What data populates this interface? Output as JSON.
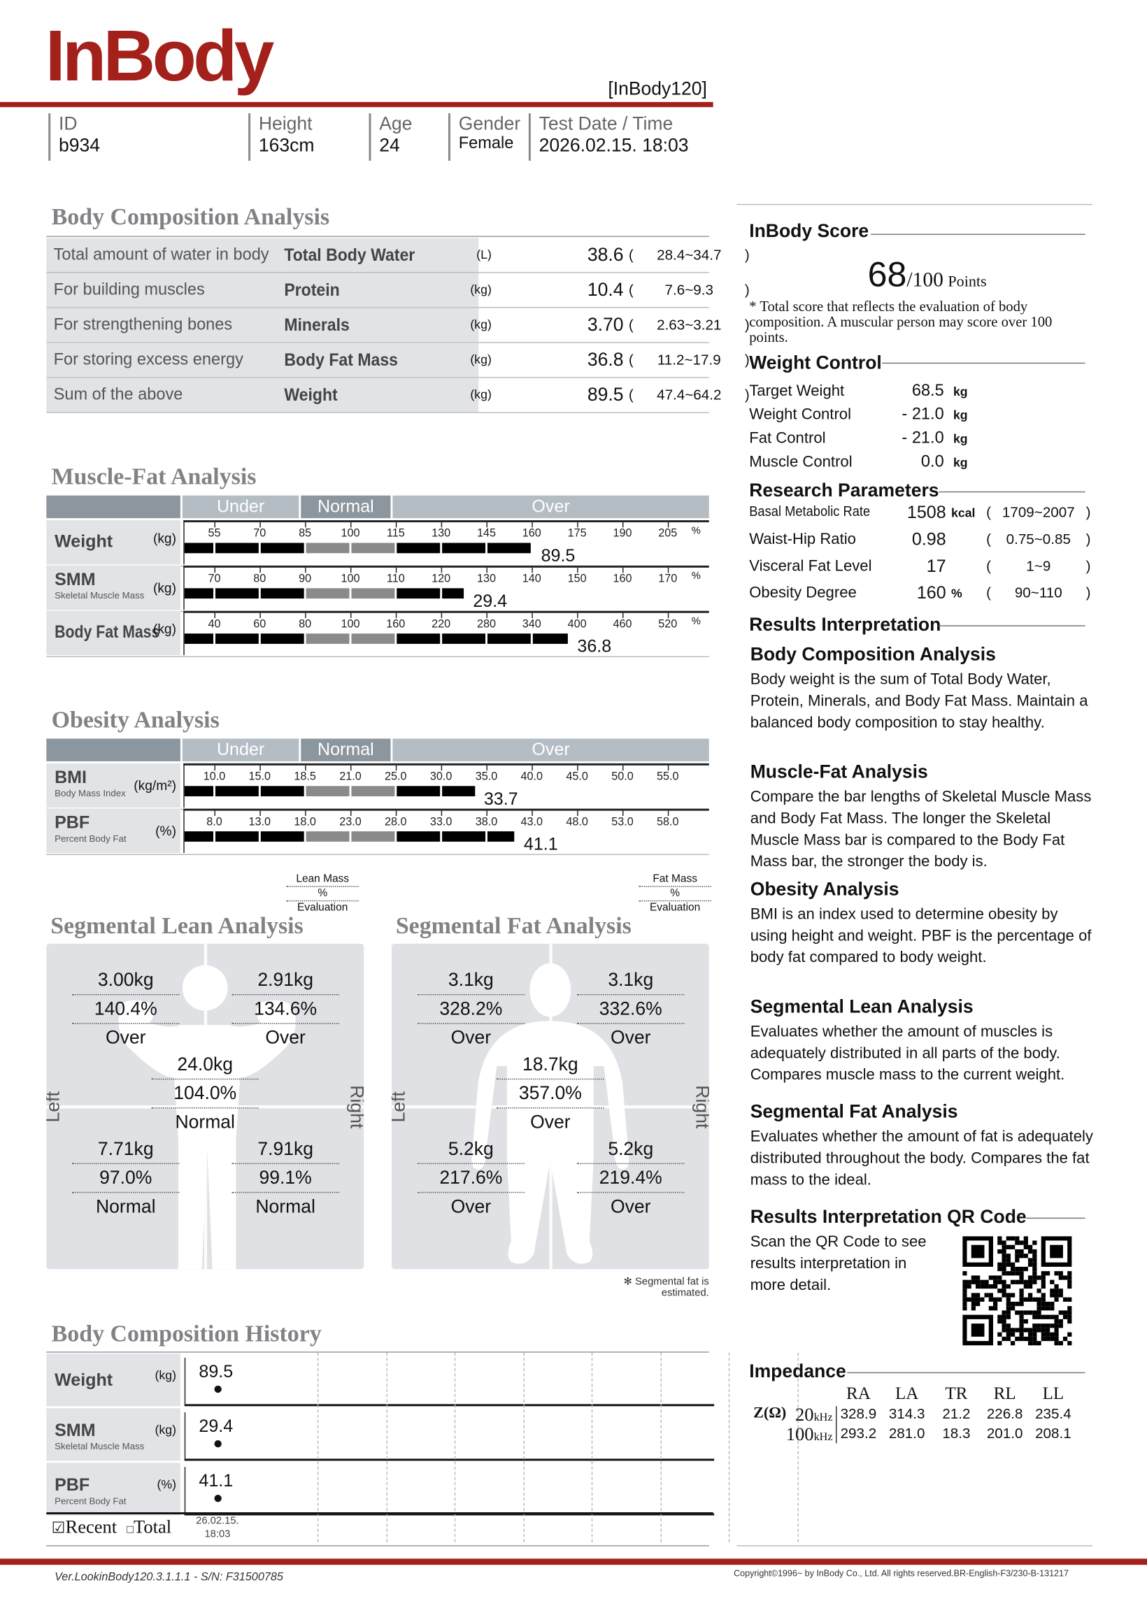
{
  "header": {
    "logo": "InBody",
    "model": "[InBody120]"
  },
  "info": {
    "id_label": "ID",
    "id": "b934",
    "height_label": "Height",
    "height": "163cm",
    "age_label": "Age",
    "age": "24",
    "gender_label": "Gender",
    "gender": "Female",
    "date_label": "Test Date / Time",
    "date": "2026.02.15. 18:03"
  },
  "bca": {
    "title": "Body Composition Analysis",
    "rows": [
      {
        "desc": "Total amount of water in body",
        "name": "Total Body Water",
        "unit": "(L)",
        "value": "38.6",
        "range": "28.4~34.7"
      },
      {
        "desc": "For building muscles",
        "name": "Protein",
        "unit": "(kg)",
        "value": "10.4",
        "range": "7.6~9.3"
      },
      {
        "desc": "For strengthening bones",
        "name": "Minerals",
        "unit": "(kg)",
        "value": "3.70",
        "range": "2.63~3.21"
      },
      {
        "desc": "For storing excess energy",
        "name": "Body Fat Mass",
        "unit": "(kg)",
        "value": "36.8",
        "range": "11.2~17.9"
      },
      {
        "desc": "Sum of the above",
        "name": "Weight",
        "unit": "(kg)",
        "value": "89.5",
        "range": "47.4~64.2"
      }
    ]
  },
  "bands": {
    "under": "Under",
    "normal": "Normal",
    "over": "Over"
  },
  "chart_data": [
    {
      "type": "bar",
      "title": "Muscle-Fat Analysis",
      "scale_unit": "%",
      "series": [
        {
          "name": "Weight",
          "sub": "",
          "unit": "(kg)",
          "ticks": [
            "55",
            "70",
            "85",
            "100",
            "115",
            "130",
            "145",
            "160",
            "175",
            "190",
            "205"
          ],
          "bar_level": 160,
          "value": "89.5"
        },
        {
          "name": "SMM",
          "sub": "Skeletal Muscle Mass",
          "unit": "(kg)",
          "ticks": [
            "70",
            "80",
            "90",
            "100",
            "110",
            "120",
            "130",
            "140",
            "150",
            "160",
            "170"
          ],
          "bar_level": 125,
          "value": "29.4"
        },
        {
          "name": "Body Fat Mass",
          "sub": "",
          "unit": "(kg)",
          "ticks": [
            "40",
            "60",
            "80",
            "100",
            "160",
            "220",
            "280",
            "340",
            "400",
            "460",
            "520"
          ],
          "bar_level": 388,
          "value": "36.8"
        }
      ]
    },
    {
      "type": "bar",
      "title": "Obesity Analysis",
      "series": [
        {
          "name": "BMI",
          "sub": "Body Mass Index",
          "unit": "(kg/m²)",
          "ticks": [
            "10.0",
            "15.0",
            "18.5",
            "21.0",
            "25.0",
            "30.0",
            "35.0",
            "40.0",
            "45.0",
            "50.0",
            "55.0"
          ],
          "bar_level": 33.7,
          "value": "33.7"
        },
        {
          "name": "PBF",
          "sub": "Percent Body Fat",
          "unit": "(%)",
          "ticks": [
            "8.0",
            "13.0",
            "18.0",
            "23.0",
            "28.0",
            "33.0",
            "38.0",
            "43.0",
            "48.0",
            "53.0",
            "58.0"
          ],
          "bar_level": 41.1,
          "value": "41.1"
        }
      ]
    }
  ],
  "segmental_lean": {
    "title": "Segmental Lean Analysis",
    "legend": [
      "Lean Mass",
      "%",
      "Evaluation"
    ],
    "left": "Left",
    "right": "Right",
    "left_arm": [
      "3.00kg",
      "140.4%",
      "Over"
    ],
    "right_arm": [
      "2.91kg",
      "134.6%",
      "Over"
    ],
    "trunk": [
      "24.0kg",
      "104.0%",
      "Normal"
    ],
    "left_leg": [
      "7.71kg",
      "97.0%",
      "Normal"
    ],
    "right_leg": [
      "7.91kg",
      "99.1%",
      "Normal"
    ]
  },
  "segmental_fat": {
    "title": "Segmental Fat Analysis",
    "legend": [
      "Fat Mass",
      "%",
      "Evaluation"
    ],
    "left": "Left",
    "right": "Right",
    "left_arm": [
      "3.1kg",
      "328.2%",
      "Over"
    ],
    "right_arm": [
      "3.1kg",
      "332.6%",
      "Over"
    ],
    "trunk": [
      "18.7kg",
      "357.0%",
      "Over"
    ],
    "left_leg": [
      "5.2kg",
      "217.6%",
      "Over"
    ],
    "right_leg": [
      "5.2kg",
      "219.4%",
      "Over"
    ],
    "note": "✻ Segmental fat is estimated."
  },
  "history": {
    "title": "Body Composition History",
    "rows": [
      {
        "name": "Weight",
        "sub": "",
        "unit": "(kg)",
        "value": "89.5"
      },
      {
        "name": "SMM",
        "sub": "Skeletal Muscle Mass",
        "unit": "(kg)",
        "value": "29.4"
      },
      {
        "name": "PBF",
        "sub": "Percent Body Fat",
        "unit": "(%)",
        "value": "41.1"
      }
    ],
    "recent_label": "Recent",
    "total_label": "Total",
    "recent_checked": true,
    "date": "26.02.15.",
    "time": "18:03"
  },
  "score": {
    "title": "InBody Score",
    "value": "68",
    "max": "/100",
    "unit": "Points",
    "note": "* Total score that reflects the evaluation of body composition. A muscular person may score over 100 points."
  },
  "weight_control": {
    "title": "Weight Control",
    "rows": [
      {
        "label": "Target Weight",
        "value": "68.5",
        "unit": "kg"
      },
      {
        "label": "Weight Control",
        "value": "- 21.0",
        "unit": "kg"
      },
      {
        "label": "Fat Control",
        "value": "- 21.0",
        "unit": "kg"
      },
      {
        "label": "Muscle Control",
        "value": "0.0",
        "unit": "kg"
      }
    ]
  },
  "research": {
    "title": "Research Parameters",
    "rows": [
      {
        "label": "Basal Metabolic Rate",
        "value": "1508",
        "unit": "kcal",
        "range": "1709~2007"
      },
      {
        "label": "Waist-Hip Ratio",
        "value": "0.98",
        "unit": "",
        "range": "0.75~0.85"
      },
      {
        "label": "Visceral Fat Level",
        "value": "17",
        "unit": "",
        "range": "1~9"
      },
      {
        "label": "Obesity Degree",
        "value": "160",
        "unit": "%",
        "range": "90~110"
      }
    ]
  },
  "interpretation": {
    "title": "Results Interpretation",
    "items": [
      {
        "heading": "Body Composition Analysis",
        "text": "Body weight is the sum of Total Body Water, Protein, Minerals, and Body Fat Mass. Maintain a balanced body composition to stay healthy."
      },
      {
        "heading": "Muscle-Fat Analysis",
        "text": "Compare the bar lengths of Skeletal Muscle Mass and Body Fat Mass. The longer the Skeletal Muscle Mass bar is compared to the Body Fat Mass bar, the stronger the body is."
      },
      {
        "heading": "Obesity Analysis",
        "text": "BMI is an index used to determine obesity by using height and weight. PBF is the percentage of body fat compared to body weight."
      },
      {
        "heading": "Segmental Lean Analysis",
        "text": "Evaluates whether the amount of muscles is adequately distributed in all parts of the body. Compares muscle mass to the current weight."
      },
      {
        "heading": "Segmental Fat Analysis",
        "text": "Evaluates whether the amount of fat is adequately distributed throughout the body. Compares the fat mass to the ideal."
      }
    ]
  },
  "qr": {
    "title": "Results Interpretation QR Code",
    "text": "Scan the QR Code to see results interpretation in more detail."
  },
  "impedance": {
    "title": "Impedance",
    "z_label": "Z(Ω)",
    "columns": [
      "RA",
      "LA",
      "TR",
      "RL",
      "LL"
    ],
    "rows": [
      {
        "freq": "20",
        "unit": "kHz",
        "values": [
          "328.9",
          "314.3",
          "21.2",
          "226.8",
          "235.4"
        ]
      },
      {
        "freq": "100",
        "unit": "kHz",
        "values": [
          "293.2",
          "281.0",
          "18.3",
          "201.0",
          "208.1"
        ]
      }
    ]
  },
  "footer": {
    "version": "Ver.LookinBody120.3.1.1.1 - S/N: F31500785",
    "copyright": "Copyright©1996~ by InBody Co., Ltd. All rights reserved.BR-English-F3/230-B-131217"
  },
  "colors": {
    "brand": "#a3201b",
    "band_light": "#b4bcc4",
    "band_dark": "#8c969e",
    "bar_over": "#000000",
    "bar_normal": "#8a8a8a"
  }
}
